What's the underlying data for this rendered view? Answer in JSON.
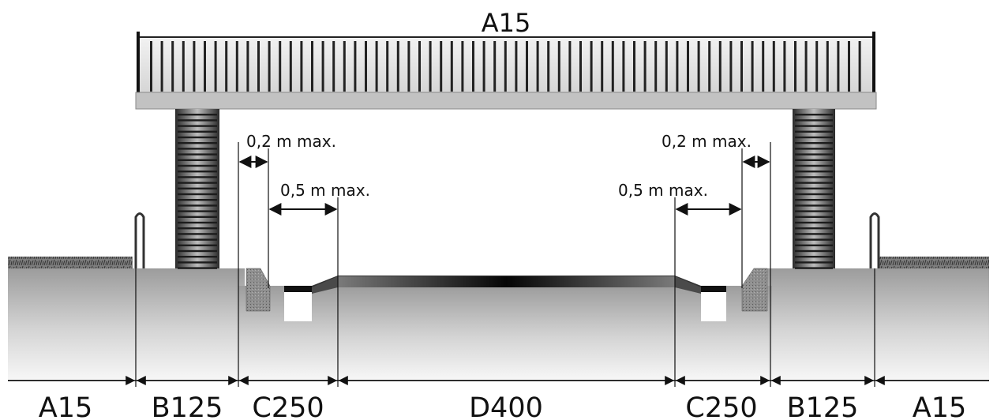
{
  "bridge": {
    "label": "A15"
  },
  "dimensions": {
    "left_kerb_gap": "0,2 m max.",
    "left_gully_gap": "0,5 m max.",
    "right_kerb_gap": "0,2 m max.",
    "right_gully_gap": "0,5 m max."
  },
  "zones": [
    {
      "label": "A15"
    },
    {
      "label": "B125"
    },
    {
      "label": "C250"
    },
    {
      "label": "D400"
    },
    {
      "label": "C250"
    },
    {
      "label": "B125"
    },
    {
      "label": "A15"
    }
  ],
  "colors": {
    "line": "#111111",
    "deck": "#bfbfbf",
    "rail": "#dcdcdc",
    "road_dark": "#111111",
    "ground_light": "#f4f4f4",
    "ground_dark": "#9e9e9e",
    "kerb": "#8a8a8a"
  }
}
